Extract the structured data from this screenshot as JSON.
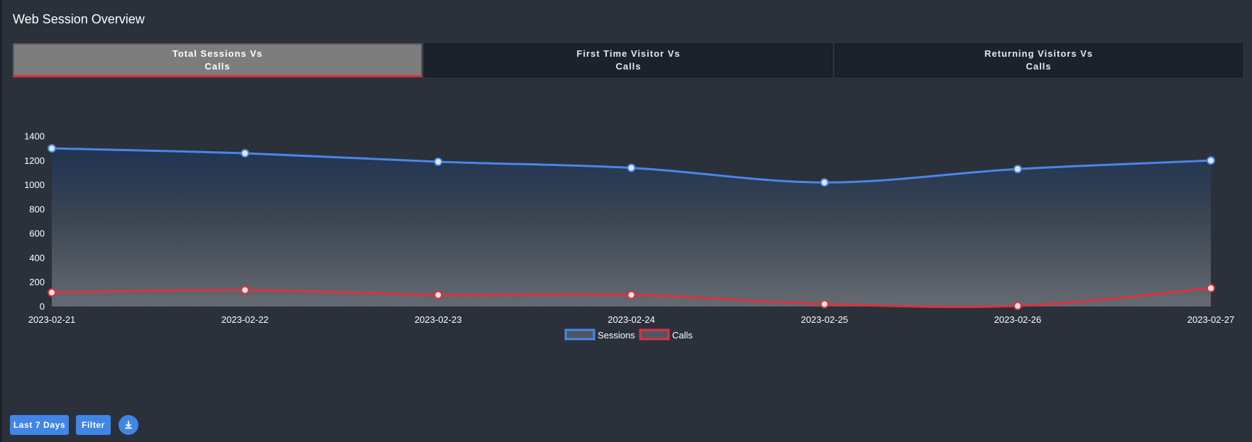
{
  "page": {
    "title": "Web Session Overview"
  },
  "tabs": [
    {
      "line1": "Total Sessions Vs",
      "line2": "Calls",
      "active": true
    },
    {
      "line1": "First Time Visitor Vs",
      "line2": "Calls",
      "active": false
    },
    {
      "line1": "Returning Visitors Vs",
      "line2": "Calls",
      "active": false
    }
  ],
  "chart_data": {
    "type": "line",
    "x": [
      "2023-02-21",
      "2023-02-22",
      "2023-02-23",
      "2023-02-24",
      "2023-02-25",
      "2023-02-26",
      "2023-02-27"
    ],
    "series": [
      {
        "name": "Sessions",
        "values": [
          1300,
          1260,
          1190,
          1140,
          1020,
          1130,
          1200
        ],
        "color": "#4a86e8",
        "fill": "area"
      },
      {
        "name": "Calls",
        "values": [
          115,
          135,
          95,
          95,
          20,
          5,
          150
        ],
        "color": "#e0313c",
        "fill": "none"
      }
    ],
    "ylim": [
      0,
      1400
    ],
    "yticks": [
      0,
      200,
      400,
      600,
      800,
      1000,
      1200,
      1400
    ],
    "legend_position": "bottom-center",
    "grid": false,
    "smooth": true
  },
  "controls": {
    "range_label": "Last 7 Days",
    "filter_label": "Filter",
    "download_icon": "download-icon"
  },
  "colors": {
    "accent": "#3f86e6",
    "active_tab_underline": "#d6303a",
    "background": "#2a313b"
  }
}
